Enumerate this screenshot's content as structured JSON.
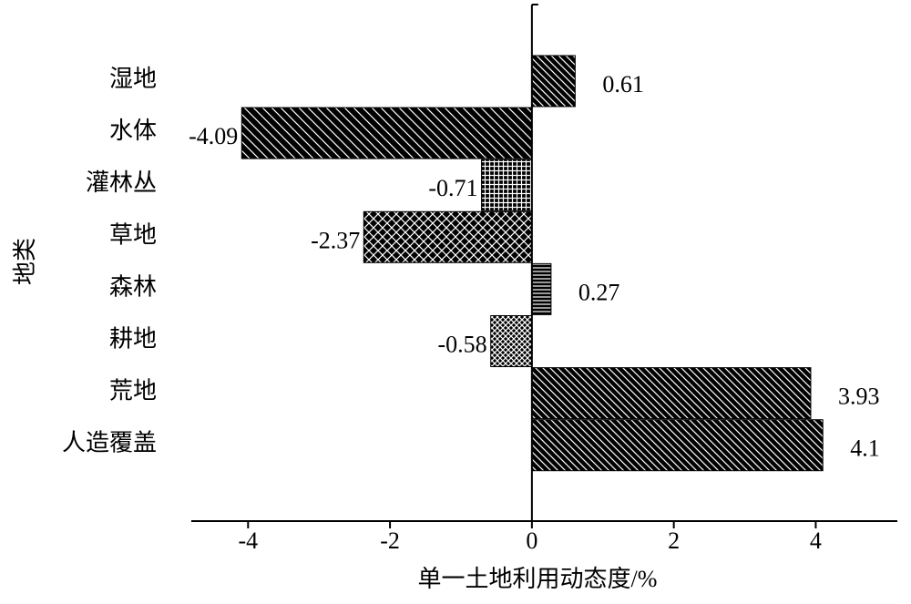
{
  "chart_data": {
    "type": "bar",
    "orientation": "horizontal",
    "x_label": "单一土地利用动态度/%",
    "y_label": "地类",
    "categories": [
      "湿地",
      "水体",
      "灌林丛",
      "草地",
      "森林",
      "耕地",
      "荒地",
      "人造覆盖"
    ],
    "values": [
      0.61,
      -4.09,
      -0.71,
      -2.37,
      0.27,
      -0.58,
      3.93,
      4.1
    ],
    "color": "#000000",
    "xlim": [
      -4.8,
      5.15
    ],
    "xticks": [
      -4,
      -2,
      0,
      2,
      4
    ],
    "grid": false
  }
}
